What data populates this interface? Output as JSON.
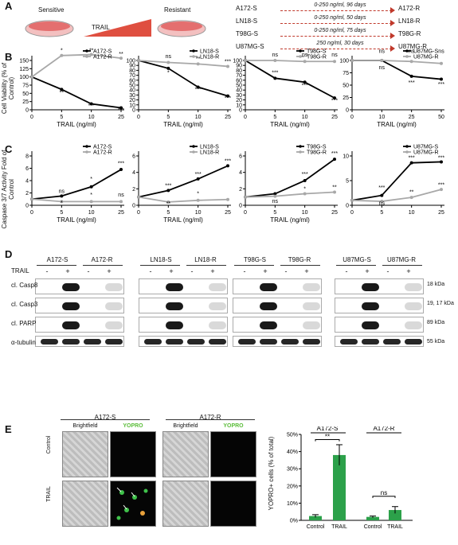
{
  "panelA": {
    "letter": "A",
    "sensitive_label": "Sensitive",
    "resistant_label": "Resistant",
    "trail_label": "TRAIL",
    "lines": [
      {
        "from": "A172-S",
        "protocol": "0-250 ng/ml, 96 days",
        "to": "A172-R"
      },
      {
        "from": "LN18-S",
        "protocol": "0-250 ng/ml, 50 days",
        "to": "LN18-R"
      },
      {
        "from": "T98G-S",
        "protocol": "0-250 ng/ml, 75 days",
        "to": "T98G-R"
      },
      {
        "from": "U87MG-S",
        "protocol": "250 ng/ml, 30 days",
        "to": "U87MG-R"
      }
    ]
  },
  "panelB": {
    "letter": "B",
    "ylabel": "Cell Viability (% of Control)",
    "xlabel": "TRAIL (ng/ml)"
  },
  "panelC": {
    "letter": "C",
    "ylabel": "Caspase 3/7 Activity Fold of Control",
    "xlabel": "TRAIL (ng/ml)"
  },
  "panelD": {
    "letter": "D",
    "trail_row": "TRAIL",
    "rows": [
      "cl. Casp8",
      "cl. Casp3",
      "cl. PARP",
      "α-tubulin"
    ],
    "sizes": [
      "18 kDa",
      "19, 17 kDa",
      "89 kDa",
      "55 kDa"
    ],
    "groups": [
      {
        "s": "A172-S",
        "r": "A172-R"
      },
      {
        "s": "LN18-S",
        "r": "LN18-R"
      },
      {
        "s": "T98G-S",
        "r": "T98G-R"
      },
      {
        "s": "U87MG-S",
        "r": "U87MG-R"
      }
    ],
    "signs": [
      "-",
      "+",
      "-",
      "+"
    ]
  },
  "panelE": {
    "letter": "E",
    "left_title": "A172-S",
    "right_title": "A172-R",
    "brightfield": "Brightfield",
    "yopro": "YOPRO",
    "row_control": "Control",
    "row_trail": "TRAIL",
    "bar_ylabel": "YOPRO+ cells (% of total)",
    "bar_group_s": "A172-S",
    "bar_group_r": "A172-R",
    "sig_s": "**",
    "sig_r": "ns"
  },
  "chart_data": [
    {
      "type": "line",
      "panel": "B",
      "title": "",
      "xlabel": "TRAIL (ng/ml)",
      "ylabel": "Cell Viability (% of Control)",
      "x": [
        0,
        5,
        10,
        25
      ],
      "xticks": [
        "0",
        "5",
        "10",
        "25"
      ],
      "ylim": [
        0,
        150
      ],
      "yticks": [
        0,
        25,
        50,
        75,
        100,
        125,
        150
      ],
      "legend": "top-right",
      "series": [
        {
          "name": "A172-S",
          "values": [
            100,
            62,
            18,
            6
          ],
          "color": "#000000"
        },
        {
          "name": "A172-R",
          "values": [
            100,
            165,
            168,
            157
          ],
          "color": "#a8a8a8"
        }
      ],
      "annotations": [
        {
          "x": 5,
          "y": 175,
          "text": "*"
        },
        {
          "x": 10,
          "y": 175,
          "text": "**"
        },
        {
          "x": 25,
          "y": 165,
          "text": "**"
        },
        {
          "x": 5,
          "y": 47,
          "text": "**"
        },
        {
          "x": 10,
          "y": 7,
          "text": "***"
        },
        {
          "x": 25,
          "y": -6,
          "text": "***"
        }
      ]
    },
    {
      "type": "line",
      "panel": "B",
      "title": "",
      "xlabel": "TRAIL (ng/ml)",
      "ylabel": "",
      "x": [
        0,
        5,
        10,
        25
      ],
      "xticks": [
        "0",
        "5",
        "10",
        "25"
      ],
      "ylim": [
        0,
        100
      ],
      "yticks": [
        0,
        10,
        20,
        30,
        40,
        50,
        60,
        70,
        80,
        90,
        100
      ],
      "legend": "top-right",
      "series": [
        {
          "name": "LN18-S",
          "values": [
            100,
            84,
            46,
            28
          ],
          "color": "#000000"
        },
        {
          "name": "LN18-R",
          "values": [
            100,
            96,
            93,
            88
          ],
          "color": "#a8a8a8"
        }
      ],
      "annotations": [
        {
          "x": 5,
          "y": 105,
          "text": "ns"
        },
        {
          "x": 10,
          "y": 100,
          "text": "**"
        },
        {
          "x": 25,
          "y": 94,
          "text": "***"
        },
        {
          "x": 5,
          "y": 72,
          "text": "*"
        },
        {
          "x": 10,
          "y": 38,
          "text": "***"
        },
        {
          "x": 25,
          "y": 20,
          "text": "***"
        }
      ]
    },
    {
      "type": "line",
      "panel": "B",
      "title": "",
      "xlabel": "TRAIL (ng/ml)",
      "ylabel": "",
      "x": [
        0,
        5,
        10,
        25
      ],
      "xticks": [
        "0",
        "5",
        "10",
        "25"
      ],
      "ylim": [
        0,
        100
      ],
      "yticks": [
        0,
        10,
        20,
        30,
        40,
        50,
        60,
        70,
        80,
        90,
        100
      ],
      "legend": "top-right",
      "series": [
        {
          "name": "T98G-S",
          "values": [
            100,
            64,
            56,
            24
          ],
          "color": "#000000"
        },
        {
          "name": "T98G-R",
          "values": [
            100,
            100,
            98,
            98
          ],
          "color": "#a8a8a8"
        }
      ],
      "annotations": [
        {
          "x": 5,
          "y": 108,
          "text": "ns"
        },
        {
          "x": 10,
          "y": 108,
          "text": "ns"
        },
        {
          "x": 25,
          "y": 108,
          "text": "ns"
        },
        {
          "x": 5,
          "y": 72,
          "text": "***"
        },
        {
          "x": 10,
          "y": 46,
          "text": "***"
        },
        {
          "x": 25,
          "y": 15,
          "text": "***"
        }
      ]
    },
    {
      "type": "line",
      "panel": "B",
      "title": "",
      "xlabel": "TRAIL (ng/ml)",
      "ylabel": "",
      "x": [
        0,
        10,
        25,
        50
      ],
      "xticks": [
        "0",
        "10",
        "25",
        "50"
      ],
      "ylim": [
        0,
        100
      ],
      "yticks": [
        0,
        25,
        50,
        75,
        100
      ],
      "legend": "top-right",
      "series": [
        {
          "name": "U87MG-S",
          "values": [
            100,
            100,
            68,
            62
          ],
          "color": "#000000"
        },
        {
          "name": "U87MG-R",
          "values": [
            100,
            100,
            98,
            94
          ],
          "color": "#a8a8a8"
        }
      ],
      "annotations": [
        {
          "x": 10,
          "y": 115,
          "text": "ns"
        },
        {
          "x": 25,
          "y": 115,
          "text": "ns"
        },
        {
          "x": 50,
          "y": 115,
          "text": "ns"
        },
        {
          "x": 10,
          "y": 82,
          "text": "ns"
        },
        {
          "x": 25,
          "y": 52,
          "text": "***"
        },
        {
          "x": 50,
          "y": 48,
          "text": "***"
        }
      ]
    },
    {
      "type": "line",
      "panel": "C",
      "title": "",
      "xlabel": "TRAIL (ng/ml)",
      "ylabel": "Caspase 3/7 Activity Fold of Control",
      "x": [
        0,
        5,
        10,
        25
      ],
      "xticks": [
        "0",
        "5",
        "10",
        "25"
      ],
      "ylim": [
        0,
        8
      ],
      "yticks": [
        0,
        2,
        4,
        6,
        8
      ],
      "legend": "top-right",
      "series": [
        {
          "name": "A172-S",
          "values": [
            1,
            1.5,
            3,
            5.8
          ],
          "color": "#000000"
        },
        {
          "name": "A172-R",
          "values": [
            1,
            0.6,
            0.6,
            0.6
          ],
          "color": "#a8a8a8"
        }
      ],
      "annotations": [
        {
          "x": 5,
          "y": 2.0,
          "text": "ns"
        },
        {
          "x": 10,
          "y": 4.0,
          "text": "*"
        },
        {
          "x": 25,
          "y": 6.5,
          "text": "***"
        },
        {
          "x": 5,
          "y": 0.1,
          "text": "*"
        },
        {
          "x": 10,
          "y": 1.4,
          "text": "*"
        },
        {
          "x": 25,
          "y": 1.4,
          "text": "ns"
        }
      ]
    },
    {
      "type": "line",
      "panel": "C",
      "title": "",
      "xlabel": "TRAIL (ng/ml)",
      "ylabel": "",
      "x": [
        0,
        5,
        10,
        25
      ],
      "xticks": [
        "0",
        "5",
        "10",
        "25"
      ],
      "ylim": [
        0,
        6
      ],
      "yticks": [
        0,
        2,
        4,
        6
      ],
      "legend": "top-right",
      "series": [
        {
          "name": "LN18-S",
          "values": [
            1,
            1.8,
            3.2,
            4.8
          ],
          "color": "#000000"
        },
        {
          "name": "LN18-R",
          "values": [
            1,
            0.4,
            0.6,
            0.7
          ],
          "color": "#a8a8a8"
        }
      ],
      "annotations": [
        {
          "x": 5,
          "y": 2.2,
          "text": "***"
        },
        {
          "x": 10,
          "y": 3.6,
          "text": "***"
        },
        {
          "x": 25,
          "y": 5.2,
          "text": "***"
        },
        {
          "x": 5,
          "y": 0.0,
          "text": "**"
        },
        {
          "x": 10,
          "y": 1.2,
          "text": "*"
        }
      ]
    },
    {
      "type": "line",
      "panel": "C",
      "title": "",
      "xlabel": "TRAIL (ng/ml)",
      "ylabel": "",
      "x": [
        0,
        5,
        10,
        25
      ],
      "xticks": [
        "0",
        "5",
        "10",
        "25"
      ],
      "ylim": [
        0,
        6
      ],
      "yticks": [
        0,
        2,
        4,
        6
      ],
      "legend": "top-right",
      "series": [
        {
          "name": "T98G-S",
          "values": [
            1,
            1.4,
            3,
            5.6
          ],
          "color": "#000000"
        },
        {
          "name": "T98G-R",
          "values": [
            1,
            1.1,
            1.4,
            1.6
          ],
          "color": "#a8a8a8"
        }
      ],
      "annotations": [
        {
          "x": 5,
          "y": 0.3,
          "text": "ns"
        },
        {
          "x": 10,
          "y": 3.6,
          "text": "***"
        },
        {
          "x": 10,
          "y": 1.8,
          "text": "*"
        },
        {
          "x": 25,
          "y": 6.1,
          "text": "***"
        },
        {
          "x": 25,
          "y": 2.0,
          "text": "**"
        }
      ]
    },
    {
      "type": "line",
      "panel": "C",
      "title": "",
      "xlabel": "",
      "ylabel": "",
      "x": [
        0,
        5,
        10,
        25
      ],
      "xticks": [
        "0",
        "5",
        "10",
        "25"
      ],
      "ylim": [
        0,
        10
      ],
      "yticks": [
        0,
        5,
        10
      ],
      "legend": "top-right",
      "series": [
        {
          "name": "U87MG-S",
          "values": [
            1,
            2,
            8.6,
            8.8
          ],
          "color": "#000000"
        },
        {
          "name": "U87MG-R",
          "values": [
            1,
            0.8,
            1.6,
            3.2
          ],
          "color": "#a8a8a8"
        }
      ],
      "annotations": [
        {
          "x": 5,
          "y": 3.2,
          "text": "***"
        },
        {
          "x": 5,
          "y": 0.1,
          "text": "ns"
        },
        {
          "x": 10,
          "y": 9.3,
          "text": "***"
        },
        {
          "x": 10,
          "y": 2.3,
          "text": "**"
        },
        {
          "x": 25,
          "y": 9.3,
          "text": "***"
        },
        {
          "x": 25,
          "y": 3.8,
          "text": "***"
        }
      ]
    },
    {
      "type": "bar",
      "panel": "E",
      "title": "",
      "xlabel": "",
      "ylabel": "YOPRO+ cells (% of total)",
      "categories": [
        "Control",
        "TRAIL",
        "Control",
        "TRAIL"
      ],
      "groups": [
        "A172-S",
        "A172-S",
        "A172-R",
        "A172-R"
      ],
      "values": [
        2.5,
        38,
        2,
        6
      ],
      "errors": [
        0.8,
        6,
        0.5,
        2
      ],
      "ylim": [
        0,
        50
      ],
      "yticks": [
        "0%",
        "10%",
        "20%",
        "30%",
        "40%",
        "50%"
      ],
      "color": "#2ca14a"
    }
  ]
}
